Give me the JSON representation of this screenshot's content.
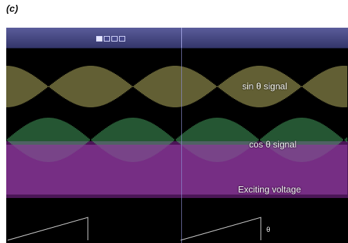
{
  "panel_label": "(c)",
  "header": {
    "left_title": "",
    "left_buttons": 4,
    "right_texts": []
  },
  "signals": [
    {
      "id": "sin",
      "label": "sin θ signal",
      "color": "#e7e07a"
    },
    {
      "id": "cos",
      "label": "cos θ signal",
      "color": "#57c978"
    },
    {
      "id": "excite",
      "label": "Exciting voltage",
      "color": "#c85ad8"
    },
    {
      "id": "ramp",
      "label": "θ",
      "color": "#d8d8d8"
    }
  ],
  "colors": {
    "scope_bg": "#000000",
    "header_top": "#5a5c9a",
    "header_bottom": "#34366b",
    "excite_band": "#5b1f6a"
  }
}
